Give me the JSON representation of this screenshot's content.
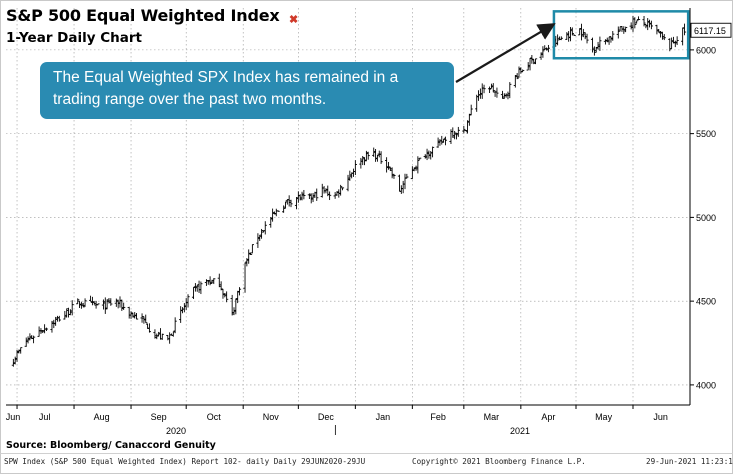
{
  "chart_data": {
    "type": "ohlc",
    "title": "S&P 500 Equal Weighted Index",
    "subtitle": "1-Year Daily Chart",
    "xlabel": "",
    "ylabel": "",
    "ylim": [
      3880,
      6250
    ],
    "y_ticks": [
      4000,
      4500,
      5000,
      5500,
      6000
    ],
    "y_side": "right",
    "grid": "dashed",
    "month_ticks": [
      "Jun",
      "Jul",
      "Aug",
      "Sep",
      "Oct",
      "Nov",
      "Dec",
      "Jan",
      "Feb",
      "Mar",
      "Apr",
      "May",
      "Jun"
    ],
    "year_labels": [
      "2020",
      "2021"
    ],
    "last_value": "6117.15",
    "x": [
      "2020-06-29",
      "2020-07-06",
      "2020-07-13",
      "2020-07-20",
      "2020-07-27",
      "2020-08-03",
      "2020-08-10",
      "2020-08-17",
      "2020-08-24",
      "2020-08-31",
      "2020-09-08",
      "2020-09-14",
      "2020-09-21",
      "2020-09-28",
      "2020-10-05",
      "2020-10-12",
      "2020-10-19",
      "2020-10-26",
      "2020-11-02",
      "2020-11-09",
      "2020-11-16",
      "2020-11-23",
      "2020-11-30",
      "2020-12-07",
      "2020-12-14",
      "2020-12-21",
      "2020-12-28",
      "2021-01-04",
      "2021-01-11",
      "2021-01-19",
      "2021-01-25",
      "2021-02-01",
      "2021-02-08",
      "2021-02-16",
      "2021-02-22",
      "2021-03-01",
      "2021-03-08",
      "2021-03-15",
      "2021-03-22",
      "2021-03-29",
      "2021-04-05",
      "2021-04-12",
      "2021-04-19",
      "2021-04-26",
      "2021-05-03",
      "2021-05-10",
      "2021-05-17",
      "2021-05-24",
      "2021-06-01",
      "2021-06-07",
      "2021-06-14",
      "2021-06-21",
      "2021-06-28"
    ],
    "values": [
      4150,
      4260,
      4320,
      4370,
      4420,
      4490,
      4480,
      4470,
      4500,
      4430,
      4380,
      4300,
      4270,
      4430,
      4560,
      4620,
      4610,
      4420,
      4720,
      4890,
      4990,
      5080,
      5120,
      5110,
      5160,
      5130,
      5240,
      5350,
      5380,
      5310,
      5160,
      5290,
      5380,
      5440,
      5510,
      5510,
      5730,
      5780,
      5700,
      5840,
      5920,
      5980,
      6040,
      6090,
      6120,
      6010,
      6060,
      6110,
      6170,
      6160,
      6110,
      6020,
      6110
    ],
    "annotations": [
      {
        "text": "The Equal Weighted SPX Index has remained in a trading range over the past two months.",
        "style": "callout",
        "color": "#2a8bb2"
      }
    ],
    "source": "Source: Bloomberg/ Canaccord Genuity",
    "footer_left": "SPW Index (S&P 500 Equal Weighted Index) Report 102- daily  Daily 29JUN2020-29JU",
    "footer_mid": "Copyright© 2021 Bloomberg Finance L.P.",
    "footer_right": "29-Jun-2021 11:23:12",
    "colors": {
      "bars": "#000000",
      "callout": "#2a8bb2",
      "box": "#1f8aa8"
    }
  }
}
